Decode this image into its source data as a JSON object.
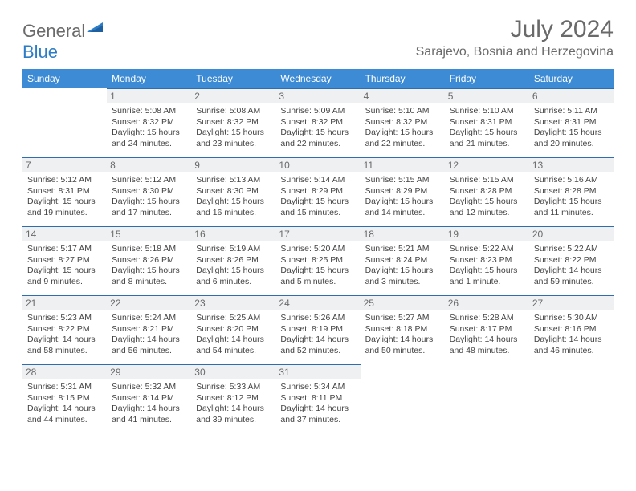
{
  "logo": {
    "text1": "General",
    "text2": "Blue"
  },
  "title": "July 2024",
  "location": "Sarajevo, Bosnia and Herzegovina",
  "colors": {
    "header_bg": "#3d8bd4",
    "header_fg": "#ffffff",
    "daynum_bg": "#eef0f2",
    "daynum_fg": "#6a6a6a",
    "cell_border": "#2d6db0",
    "logo_gray": "#6a6a6a",
    "logo_blue": "#2d7dc6",
    "text": "#444444",
    "background": "#ffffff"
  },
  "typography": {
    "month_title_fontsize": 30,
    "location_fontsize": 16,
    "weekday_fontsize": 12,
    "daynum_fontsize": 12,
    "body_fontsize": 10.5
  },
  "weekdays": [
    "Sunday",
    "Monday",
    "Tuesday",
    "Wednesday",
    "Thursday",
    "Friday",
    "Saturday"
  ],
  "weeks": [
    [
      null,
      {
        "n": "1",
        "sunrise": "Sunrise: 5:08 AM",
        "sunset": "Sunset: 8:32 PM",
        "d1": "Daylight: 15 hours",
        "d2": "and 24 minutes."
      },
      {
        "n": "2",
        "sunrise": "Sunrise: 5:08 AM",
        "sunset": "Sunset: 8:32 PM",
        "d1": "Daylight: 15 hours",
        "d2": "and 23 minutes."
      },
      {
        "n": "3",
        "sunrise": "Sunrise: 5:09 AM",
        "sunset": "Sunset: 8:32 PM",
        "d1": "Daylight: 15 hours",
        "d2": "and 22 minutes."
      },
      {
        "n": "4",
        "sunrise": "Sunrise: 5:10 AM",
        "sunset": "Sunset: 8:32 PM",
        "d1": "Daylight: 15 hours",
        "d2": "and 22 minutes."
      },
      {
        "n": "5",
        "sunrise": "Sunrise: 5:10 AM",
        "sunset": "Sunset: 8:31 PM",
        "d1": "Daylight: 15 hours",
        "d2": "and 21 minutes."
      },
      {
        "n": "6",
        "sunrise": "Sunrise: 5:11 AM",
        "sunset": "Sunset: 8:31 PM",
        "d1": "Daylight: 15 hours",
        "d2": "and 20 minutes."
      }
    ],
    [
      {
        "n": "7",
        "sunrise": "Sunrise: 5:12 AM",
        "sunset": "Sunset: 8:31 PM",
        "d1": "Daylight: 15 hours",
        "d2": "and 19 minutes."
      },
      {
        "n": "8",
        "sunrise": "Sunrise: 5:12 AM",
        "sunset": "Sunset: 8:30 PM",
        "d1": "Daylight: 15 hours",
        "d2": "and 17 minutes."
      },
      {
        "n": "9",
        "sunrise": "Sunrise: 5:13 AM",
        "sunset": "Sunset: 8:30 PM",
        "d1": "Daylight: 15 hours",
        "d2": "and 16 minutes."
      },
      {
        "n": "10",
        "sunrise": "Sunrise: 5:14 AM",
        "sunset": "Sunset: 8:29 PM",
        "d1": "Daylight: 15 hours",
        "d2": "and 15 minutes."
      },
      {
        "n": "11",
        "sunrise": "Sunrise: 5:15 AM",
        "sunset": "Sunset: 8:29 PM",
        "d1": "Daylight: 15 hours",
        "d2": "and 14 minutes."
      },
      {
        "n": "12",
        "sunrise": "Sunrise: 5:15 AM",
        "sunset": "Sunset: 8:28 PM",
        "d1": "Daylight: 15 hours",
        "d2": "and 12 minutes."
      },
      {
        "n": "13",
        "sunrise": "Sunrise: 5:16 AM",
        "sunset": "Sunset: 8:28 PM",
        "d1": "Daylight: 15 hours",
        "d2": "and 11 minutes."
      }
    ],
    [
      {
        "n": "14",
        "sunrise": "Sunrise: 5:17 AM",
        "sunset": "Sunset: 8:27 PM",
        "d1": "Daylight: 15 hours",
        "d2": "and 9 minutes."
      },
      {
        "n": "15",
        "sunrise": "Sunrise: 5:18 AM",
        "sunset": "Sunset: 8:26 PM",
        "d1": "Daylight: 15 hours",
        "d2": "and 8 minutes."
      },
      {
        "n": "16",
        "sunrise": "Sunrise: 5:19 AM",
        "sunset": "Sunset: 8:26 PM",
        "d1": "Daylight: 15 hours",
        "d2": "and 6 minutes."
      },
      {
        "n": "17",
        "sunrise": "Sunrise: 5:20 AM",
        "sunset": "Sunset: 8:25 PM",
        "d1": "Daylight: 15 hours",
        "d2": "and 5 minutes."
      },
      {
        "n": "18",
        "sunrise": "Sunrise: 5:21 AM",
        "sunset": "Sunset: 8:24 PM",
        "d1": "Daylight: 15 hours",
        "d2": "and 3 minutes."
      },
      {
        "n": "19",
        "sunrise": "Sunrise: 5:22 AM",
        "sunset": "Sunset: 8:23 PM",
        "d1": "Daylight: 15 hours",
        "d2": "and 1 minute."
      },
      {
        "n": "20",
        "sunrise": "Sunrise: 5:22 AM",
        "sunset": "Sunset: 8:22 PM",
        "d1": "Daylight: 14 hours",
        "d2": "and 59 minutes."
      }
    ],
    [
      {
        "n": "21",
        "sunrise": "Sunrise: 5:23 AM",
        "sunset": "Sunset: 8:22 PM",
        "d1": "Daylight: 14 hours",
        "d2": "and 58 minutes."
      },
      {
        "n": "22",
        "sunrise": "Sunrise: 5:24 AM",
        "sunset": "Sunset: 8:21 PM",
        "d1": "Daylight: 14 hours",
        "d2": "and 56 minutes."
      },
      {
        "n": "23",
        "sunrise": "Sunrise: 5:25 AM",
        "sunset": "Sunset: 8:20 PM",
        "d1": "Daylight: 14 hours",
        "d2": "and 54 minutes."
      },
      {
        "n": "24",
        "sunrise": "Sunrise: 5:26 AM",
        "sunset": "Sunset: 8:19 PM",
        "d1": "Daylight: 14 hours",
        "d2": "and 52 minutes."
      },
      {
        "n": "25",
        "sunrise": "Sunrise: 5:27 AM",
        "sunset": "Sunset: 8:18 PM",
        "d1": "Daylight: 14 hours",
        "d2": "and 50 minutes."
      },
      {
        "n": "26",
        "sunrise": "Sunrise: 5:28 AM",
        "sunset": "Sunset: 8:17 PM",
        "d1": "Daylight: 14 hours",
        "d2": "and 48 minutes."
      },
      {
        "n": "27",
        "sunrise": "Sunrise: 5:30 AM",
        "sunset": "Sunset: 8:16 PM",
        "d1": "Daylight: 14 hours",
        "d2": "and 46 minutes."
      }
    ],
    [
      {
        "n": "28",
        "sunrise": "Sunrise: 5:31 AM",
        "sunset": "Sunset: 8:15 PM",
        "d1": "Daylight: 14 hours",
        "d2": "and 44 minutes."
      },
      {
        "n": "29",
        "sunrise": "Sunrise: 5:32 AM",
        "sunset": "Sunset: 8:14 PM",
        "d1": "Daylight: 14 hours",
        "d2": "and 41 minutes."
      },
      {
        "n": "30",
        "sunrise": "Sunrise: 5:33 AM",
        "sunset": "Sunset: 8:12 PM",
        "d1": "Daylight: 14 hours",
        "d2": "and 39 minutes."
      },
      {
        "n": "31",
        "sunrise": "Sunrise: 5:34 AM",
        "sunset": "Sunset: 8:11 PM",
        "d1": "Daylight: 14 hours",
        "d2": "and 37 minutes."
      },
      null,
      null,
      null
    ]
  ]
}
